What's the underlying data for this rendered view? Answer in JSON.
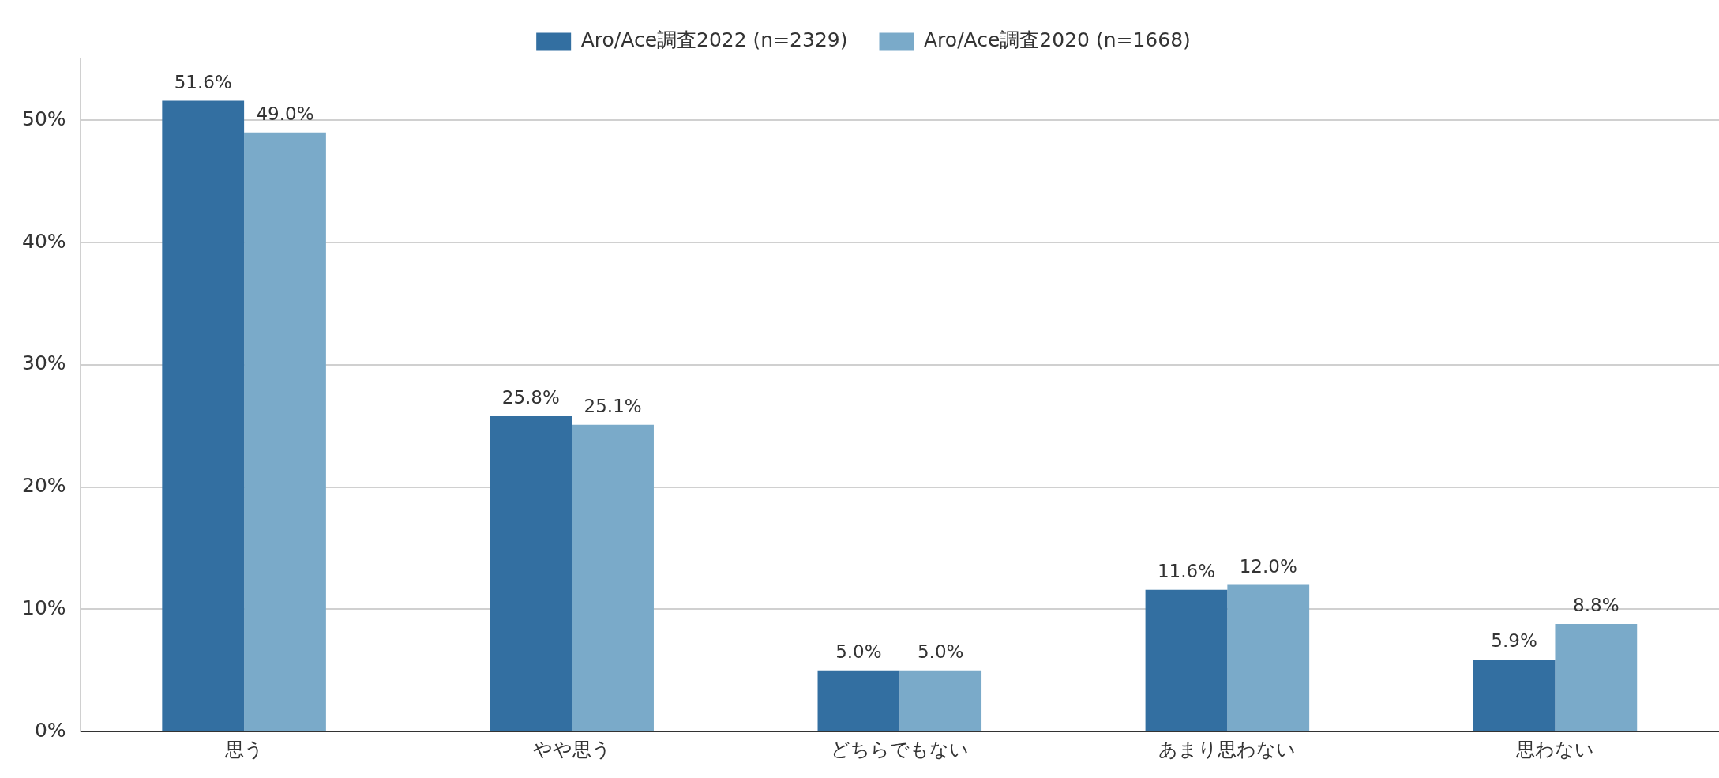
{
  "chart_data": {
    "type": "bar",
    "categories": [
      "思う",
      "やや思う",
      "どちらでもない",
      "あまり思わない",
      "思わない"
    ],
    "series": [
      {
        "name": "Aro/Ace調査2022 (n=2329)",
        "color": "#336fa1",
        "values": [
          51.6,
          25.8,
          5.0,
          11.6,
          5.9
        ],
        "value_labels": [
          "51.6%",
          "25.8%",
          "5.0%",
          "11.6%",
          "5.9%"
        ]
      },
      {
        "name": "Aro/Ace調査2020 (n=1668)",
        "color": "#7aaac9",
        "values": [
          49.0,
          25.1,
          5.0,
          12.0,
          8.8
        ],
        "value_labels": [
          "49.0%",
          "25.1%",
          "5.0%",
          "12.0%",
          "8.8%"
        ]
      }
    ],
    "yticks": [
      {
        "value": 0,
        "label": "0%"
      },
      {
        "value": 10,
        "label": "10%"
      },
      {
        "value": 20,
        "label": "20%"
      },
      {
        "value": 30,
        "label": "30%"
      },
      {
        "value": 40,
        "label": "40%"
      },
      {
        "value": 50,
        "label": "50%"
      }
    ],
    "ylim": [
      0,
      55
    ],
    "grid": "y",
    "legend": "top"
  }
}
